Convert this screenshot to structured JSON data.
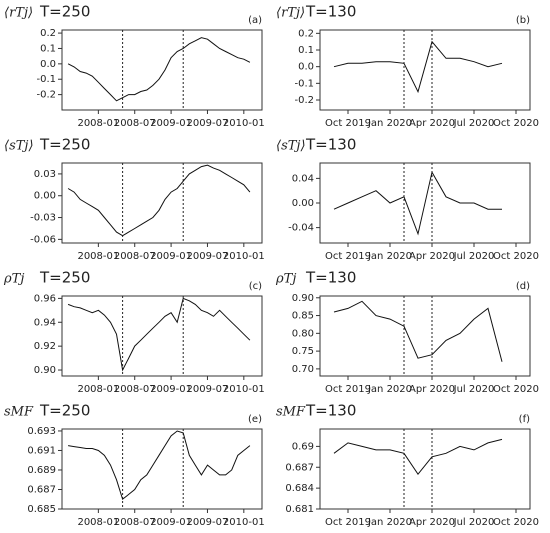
{
  "chart_data": [
    {
      "type": "line",
      "title": "T=250",
      "y_label": "⟨rTj⟩",
      "panel_label": "(a)",
      "x": [
        "2007-08",
        "2007-09",
        "2007-10",
        "2007-11",
        "2007-12",
        "2008-01",
        "2008-02",
        "2008-03",
        "2008-04",
        "2008-05",
        "2008-06",
        "2008-07",
        "2008-08",
        "2008-09",
        "2008-10",
        "2008-11",
        "2008-12",
        "2009-01",
        "2009-02",
        "2009-03",
        "2009-04",
        "2009-05",
        "2009-06",
        "2009-07",
        "2009-08",
        "2009-09",
        "2009-10",
        "2009-11",
        "2009-12",
        "2010-01",
        "2010-02"
      ],
      "series": [
        {
          "color": "#111111",
          "values": [
            0.0,
            -0.02,
            -0.05,
            -0.06,
            -0.08,
            -0.12,
            -0.16,
            -0.2,
            -0.24,
            -0.22,
            -0.2,
            -0.2,
            -0.18,
            -0.17,
            -0.14,
            -0.1,
            -0.04,
            0.04,
            0.08,
            0.1,
            0.13,
            0.15,
            0.17,
            0.16,
            0.13,
            0.1,
            0.08,
            0.06,
            0.04,
            0.03,
            0.01
          ]
        }
      ],
      "xlim": [
        "2007-07",
        "2010-04"
      ],
      "xticks": [
        "2008-01",
        "2008-07",
        "2009-01",
        "2009-07",
        "2010-01"
      ],
      "ylim": [
        -0.3,
        0.22
      ],
      "yticks": [
        -0.2,
        -0.1,
        {
          "value": 0,
          "label": "0.0"
        },
        0.1,
        0.2
      ],
      "vlines": [
        "2008-05",
        "2009-03"
      ]
    },
    {
      "type": "line",
      "title": "T=130",
      "y_label": "⟨rTj⟩",
      "panel_label": "(b)",
      "x": [
        "2019-09",
        "2019-10",
        "2019-11",
        "2019-12",
        "2020-01",
        "2020-02",
        "2020-03",
        "2020-04",
        "2020-05",
        "2020-06",
        "2020-07",
        "2020-08",
        "2020-09"
      ],
      "series": [
        {
          "color": "#111111",
          "values": [
            0.0,
            0.02,
            0.02,
            0.03,
            0.03,
            0.02,
            -0.15,
            0.15,
            0.05,
            0.05,
            0.03,
            0.0,
            0.02
          ]
        }
      ],
      "xlim": [
        "2019-08",
        "2020-11"
      ],
      "xticks": [
        {
          "value": "2019-10",
          "label": "Oct 2019"
        },
        {
          "value": "2020-01",
          "label": "Jan 2020"
        },
        {
          "value": "2020-04",
          "label": "Apr 2020"
        },
        {
          "value": "2020-07",
          "label": "Jul 2020"
        },
        {
          "value": "2020-10",
          "label": "Oct 2020"
        }
      ],
      "ylim": [
        -0.26,
        0.22
      ],
      "yticks": [
        -0.2,
        -0.1,
        {
          "value": 0,
          "label": "0.0"
        },
        0.1,
        0.2
      ],
      "vlines": [
        "2020-02",
        "2020-04"
      ]
    },
    {
      "type": "line",
      "title": "T=250",
      "y_label": "⟨sTj⟩",
      "x": [
        "2007-08",
        "2007-09",
        "2007-10",
        "2007-11",
        "2007-12",
        "2008-01",
        "2008-02",
        "2008-03",
        "2008-04",
        "2008-05",
        "2008-06",
        "2008-07",
        "2008-08",
        "2008-09",
        "2008-10",
        "2008-11",
        "2008-12",
        "2009-01",
        "2009-02",
        "2009-03",
        "2009-04",
        "2009-05",
        "2009-06",
        "2009-07",
        "2009-08",
        "2009-09",
        "2009-10",
        "2009-11",
        "2009-12",
        "2010-01",
        "2010-02"
      ],
      "series": [
        {
          "color": "#111111",
          "values": [
            0.01,
            0.005,
            -0.005,
            -0.01,
            -0.015,
            -0.02,
            -0.03,
            -0.04,
            -0.05,
            -0.055,
            -0.05,
            -0.045,
            -0.04,
            -0.035,
            -0.03,
            -0.02,
            -0.005,
            0.005,
            0.01,
            0.02,
            0.03,
            0.035,
            0.04,
            0.042,
            0.038,
            0.035,
            0.03,
            0.025,
            0.02,
            0.015,
            0.005
          ]
        }
      ],
      "xlim": [
        "2007-07",
        "2010-04"
      ],
      "xticks": [
        "2008-01",
        "2008-07",
        "2009-01",
        "2009-07",
        "2010-01"
      ],
      "ylim": [
        -0.065,
        0.045
      ],
      "yticks": [
        {
          "value": -0.06,
          "label": "-0.06"
        },
        {
          "value": -0.03,
          "label": "-0.03"
        },
        {
          "value": 0,
          "label": "0.00"
        },
        0.03
      ],
      "vlines": [
        "2008-05",
        "2009-03"
      ]
    },
    {
      "type": "line",
      "title": "T=130",
      "y_label": "⟨sTj⟩",
      "x": [
        "2019-09",
        "2019-10",
        "2019-11",
        "2019-12",
        "2020-01",
        "2020-02",
        "2020-03",
        "2020-04",
        "2020-05",
        "2020-06",
        "2020-07",
        "2020-08",
        "2020-09"
      ],
      "series": [
        {
          "color": "#111111",
          "values": [
            -0.01,
            0.0,
            0.01,
            0.02,
            0.0,
            0.01,
            -0.05,
            0.05,
            0.01,
            0.0,
            0.0,
            -0.01,
            -0.01
          ]
        }
      ],
      "xlim": [
        "2019-08",
        "2020-11"
      ],
      "xticks": [
        {
          "value": "2019-10",
          "label": "Oct 2019"
        },
        {
          "value": "2020-01",
          "label": "Jan 2020"
        },
        {
          "value": "2020-04",
          "label": "Apr 2020"
        },
        {
          "value": "2020-07",
          "label": "Jul 2020"
        },
        {
          "value": "2020-10",
          "label": "Oct 2020"
        }
      ],
      "ylim": [
        -0.065,
        0.065
      ],
      "yticks": [
        -0.04,
        {
          "value": 0,
          "label": "0.00"
        },
        0.04
      ],
      "vlines": [
        "2020-02",
        "2020-04"
      ]
    },
    {
      "type": "line",
      "title": "T=250",
      "y_label": "ρTj",
      "panel_label": "(c)",
      "x": [
        "2007-08",
        "2007-09",
        "2007-10",
        "2007-11",
        "2007-12",
        "2008-01",
        "2008-02",
        "2008-03",
        "2008-04",
        "2008-05",
        "2008-06",
        "2008-07",
        "2008-08",
        "2008-09",
        "2008-10",
        "2008-11",
        "2008-12",
        "2009-01",
        "2009-02",
        "2009-03",
        "2009-04",
        "2009-05",
        "2009-06",
        "2009-07",
        "2009-08",
        "2009-09",
        "2009-10",
        "2009-11",
        "2009-12",
        "2010-01",
        "2010-02"
      ],
      "series": [
        {
          "color": "#111111",
          "values": [
            0.955,
            0.953,
            0.952,
            0.95,
            0.948,
            0.95,
            0.946,
            0.94,
            0.93,
            0.9,
            0.91,
            0.92,
            0.925,
            0.93,
            0.935,
            0.94,
            0.945,
            0.948,
            0.94,
            0.96,
            0.958,
            0.955,
            0.95,
            0.948,
            0.945,
            0.95,
            0.945,
            0.94,
            0.935,
            0.93,
            0.925
          ]
        }
      ],
      "xlim": [
        "2007-07",
        "2010-04"
      ],
      "xticks": [
        "2008-01",
        "2008-07",
        "2009-01",
        "2009-07",
        "2010-01"
      ],
      "ylim": [
        0.895,
        0.962
      ],
      "yticks": [
        {
          "value": 0.9,
          "label": "0.90"
        },
        0.92,
        0.94,
        0.96
      ],
      "vlines": [
        "2008-05",
        "2009-03"
      ]
    },
    {
      "type": "line",
      "title": "T=130",
      "y_label": "ρTj",
      "panel_label": "(d)",
      "x": [
        "2019-09",
        "2019-10",
        "2019-11",
        "2019-12",
        "2020-01",
        "2020-02",
        "2020-03",
        "2020-04",
        "2020-05",
        "2020-06",
        "2020-07",
        "2020-08",
        "2020-09"
      ],
      "series": [
        {
          "color": "#111111",
          "values": [
            0.86,
            0.87,
            0.89,
            0.85,
            0.84,
            0.82,
            0.73,
            0.74,
            0.78,
            0.8,
            0.84,
            0.87,
            0.72
          ]
        }
      ],
      "xlim": [
        "2019-08",
        "2020-11"
      ],
      "xticks": [
        {
          "value": "2019-10",
          "label": "Oct 2019"
        },
        {
          "value": "2020-01",
          "label": "Jan 2020"
        },
        {
          "value": "2020-04",
          "label": "Apr 2020"
        },
        {
          "value": "2020-07",
          "label": "Jul 2020"
        },
        {
          "value": "2020-10",
          "label": "Oct 2020"
        }
      ],
      "ylim": [
        0.68,
        0.905
      ],
      "yticks": [
        {
          "value": 0.7,
          "label": "0.70"
        },
        0.75,
        {
          "value": 0.8,
          "label": "0.80"
        },
        0.85,
        {
          "value": 0.9,
          "label": "0.90"
        }
      ],
      "vlines": [
        "2020-02",
        "2020-04"
      ]
    },
    {
      "type": "line",
      "title": "T=250",
      "y_label": "sMF",
      "panel_label": "(e)",
      "x": [
        "2007-08",
        "2007-09",
        "2007-10",
        "2007-11",
        "2007-12",
        "2008-01",
        "2008-02",
        "2008-03",
        "2008-04",
        "2008-05",
        "2008-06",
        "2008-07",
        "2008-08",
        "2008-09",
        "2008-10",
        "2008-11",
        "2008-12",
        "2009-01",
        "2009-02",
        "2009-03",
        "2009-04",
        "2009-05",
        "2009-06",
        "2009-07",
        "2009-08",
        "2009-09",
        "2009-10",
        "2009-11",
        "2009-12",
        "2010-01",
        "2010-02"
      ],
      "series": [
        {
          "color": "#111111",
          "values": [
            0.6915,
            0.6914,
            0.6913,
            0.6912,
            0.6912,
            0.691,
            0.6905,
            0.6895,
            0.688,
            0.686,
            0.6865,
            0.687,
            0.688,
            0.6885,
            0.6895,
            0.6905,
            0.6915,
            0.6925,
            0.693,
            0.6928,
            0.6905,
            0.6895,
            0.6885,
            0.6895,
            0.689,
            0.6885,
            0.6885,
            0.689,
            0.6905,
            0.691,
            0.6915
          ]
        }
      ],
      "xlim": [
        "2007-07",
        "2010-04"
      ],
      "xticks": [
        "2008-01",
        "2008-07",
        "2009-01",
        "2009-07",
        "2010-01"
      ],
      "ylim": [
        0.685,
        0.6932
      ],
      "yticks": [
        0.685,
        0.687,
        0.689,
        0.691,
        0.693
      ],
      "vlines": [
        "2008-05",
        "2009-03"
      ]
    },
    {
      "type": "line",
      "title": "T=130",
      "y_label": "sMF",
      "panel_label": "(f)",
      "x": [
        "2019-09",
        "2019-10",
        "2019-11",
        "2019-12",
        "2020-01",
        "2020-02",
        "2020-03",
        "2020-04",
        "2020-05",
        "2020-06",
        "2020-07",
        "2020-08",
        "2020-09"
      ],
      "series": [
        {
          "color": "#111111",
          "values": [
            0.689,
            0.6905,
            0.69,
            0.6895,
            0.6895,
            0.689,
            0.686,
            0.6885,
            0.689,
            0.69,
            0.6895,
            0.6905,
            0.691
          ]
        }
      ],
      "xlim": [
        "2019-08",
        "2020-11"
      ],
      "xticks": [
        {
          "value": "2019-10",
          "label": "Oct 2019"
        },
        {
          "value": "2020-01",
          "label": "Jan 2020"
        },
        {
          "value": "2020-04",
          "label": "Apr 2020"
        },
        {
          "value": "2020-07",
          "label": "Jul 2020"
        },
        {
          "value": "2020-10",
          "label": "Oct 2020"
        }
      ],
      "ylim": [
        0.681,
        0.6925
      ],
      "yticks": [
        0.681,
        0.684,
        0.687,
        0.69
      ],
      "vlines": [
        "2020-02",
        "2020-04"
      ]
    }
  ]
}
